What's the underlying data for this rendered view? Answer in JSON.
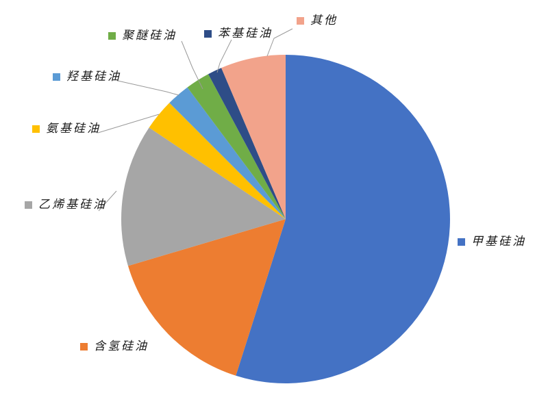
{
  "chart_data": {
    "type": "pie",
    "title": "",
    "categories": [
      "甲基硅油",
      "含氢硅油",
      "乙烯基硅油",
      "氨基硅油",
      "羟基硅油",
      "聚醚硅油",
      "苯基硅油",
      "其他"
    ],
    "values": [
      54.9,
      15.5,
      14.0,
      3.1,
      2.3,
      2.4,
      1.4,
      6.4
    ],
    "unit": "%",
    "colors": [
      "#4472C4",
      "#ED7D31",
      "#A6A6A6",
      "#FFC000",
      "#5B9BD5",
      "#70AD47",
      "#2E4D87",
      "#F2A38B"
    ],
    "start_angle_deg": 0,
    "direction": "clockwise",
    "legend_position": "callout-labels-around-pie",
    "leader_line_color": "#999999",
    "background": "#FFFFFF"
  }
}
